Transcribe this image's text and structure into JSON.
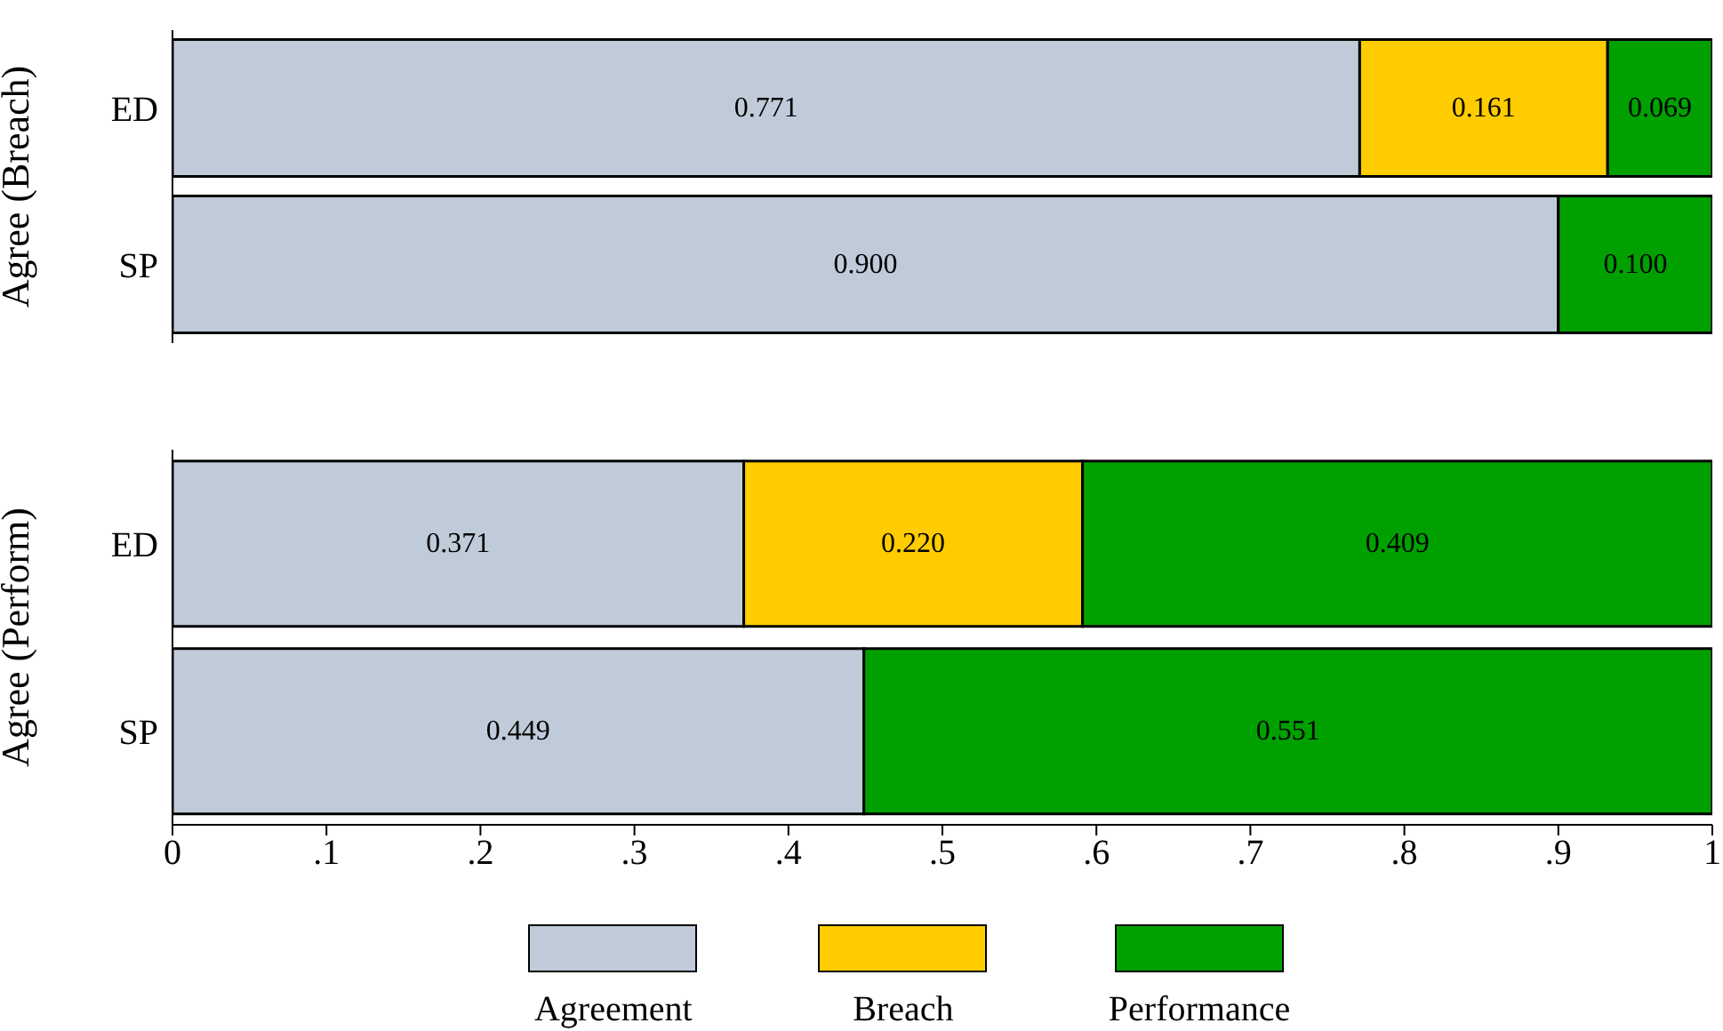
{
  "chart_data": [
    {
      "type": "bar",
      "orientation": "horizontal",
      "stacked": true,
      "ylabel": "Agree (Breach)",
      "categories": [
        "ED",
        "SP"
      ],
      "series": [
        {
          "color": "#bfcbd9",
          "values": [
            0.771,
            0.9
          ],
          "value_labels": [
            "0.771",
            "0.900"
          ]
        },
        {
          "color": "#ffcc00",
          "values": [
            0.161,
            null
          ],
          "value_labels": [
            "0.161",
            null
          ]
        },
        {
          "color": "#00a000",
          "values": [
            0.069,
            0.1
          ],
          "value_labels": [
            "0.069",
            "0.100"
          ]
        }
      ],
      "xlim": [
        0,
        1
      ],
      "tick_labels": "y",
      "legend": false
    },
    {
      "type": "bar",
      "orientation": "horizontal",
      "stacked": true,
      "ylabel": "Agree (Perform)",
      "categories": [
        "ED",
        "SP"
      ],
      "series": [
        {
          "name": "Agreement",
          "color": "#bfcbd9",
          "values": [
            0.371,
            0.449
          ],
          "value_labels": [
            "0.371",
            "0.449"
          ]
        },
        {
          "name": "Breach",
          "color": "#ffcc00",
          "values": [
            0.22,
            null
          ],
          "value_labels": [
            "0.220",
            null
          ]
        },
        {
          "name": "Performance",
          "color": "#00a000",
          "values": [
            0.409,
            0.551
          ],
          "value_labels": [
            "0.409",
            "0.551"
          ]
        }
      ],
      "xlim": [
        0,
        1
      ],
      "xticks": [
        0,
        {
          "value": 0.1,
          "label": ".1"
        },
        {
          "value": 0.2,
          "label": ".2"
        },
        {
          "value": 0.3,
          "label": ".3"
        },
        {
          "value": 0.4,
          "label": ".4"
        },
        {
          "value": 0.5,
          "label": ".5"
        },
        {
          "value": 0.6,
          "label": ".6"
        },
        {
          "value": 0.7,
          "label": ".7"
        },
        {
          "value": 0.8,
          "label": ".8"
        },
        {
          "value": 0.9,
          "label": ".9"
        },
        1
      ],
      "legend": "bottom"
    }
  ]
}
